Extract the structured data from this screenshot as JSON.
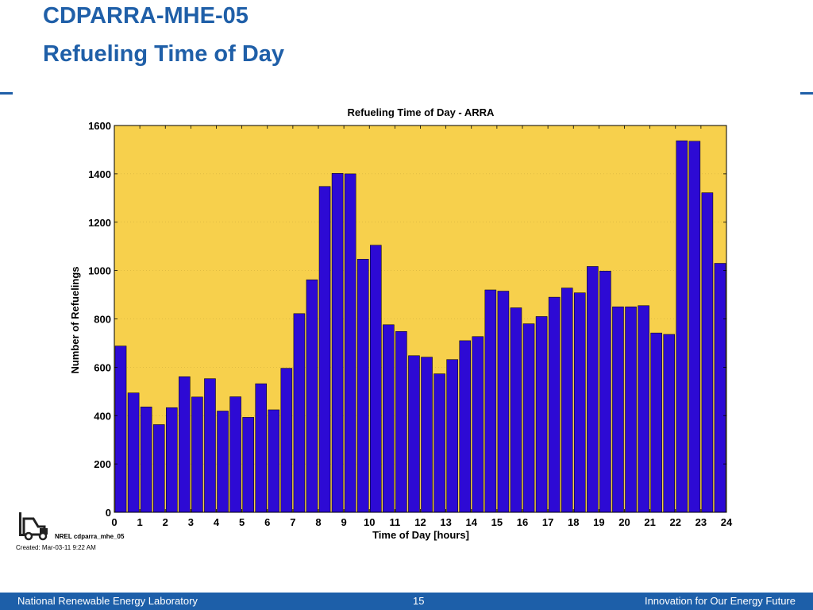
{
  "slide": {
    "title_line1": "CDPARRA-MHE-05",
    "title_line2": "Refueling Time of Day",
    "accent_color": "#1f5fa8"
  },
  "logo": {
    "icon": "forklift-icon",
    "caption": "NREL cdparra_mhe_05"
  },
  "created_note": "Created: Mar-03-11  9:22 AM",
  "footer": {
    "left": "National Renewable Energy Laboratory",
    "page_number": "15",
    "right": "Innovation for Our Energy Future",
    "background": "#1d5fa9"
  },
  "chart_data": {
    "type": "bar",
    "title": "Refueling Time of Day - ARRA",
    "xlabel": "Time of Day [hours]",
    "ylabel": "Number of Refuelings",
    "xlim": [
      0,
      24
    ],
    "ylim": [
      0,
      1600
    ],
    "bin_width_hours": 0.5,
    "x_ticks": [
      "0",
      "1",
      "2",
      "3",
      "4",
      "5",
      "6",
      "7",
      "8",
      "9",
      "10",
      "11",
      "12",
      "13",
      "14",
      "15",
      "16",
      "17",
      "18",
      "19",
      "20",
      "21",
      "22",
      "23",
      "24"
    ],
    "y_ticks": [
      "0",
      "200",
      "400",
      "600",
      "800",
      "1000",
      "1200",
      "1400",
      "1600"
    ],
    "grid": true,
    "plot_background": "#f7d04c",
    "bar_color": "#2d0ad4",
    "x": [
      0,
      0.5,
      1,
      1.5,
      2,
      2.5,
      3,
      3.5,
      4,
      4.5,
      5,
      5.5,
      6,
      6.5,
      7,
      7.5,
      8,
      8.5,
      9,
      9.5,
      10,
      10.5,
      11,
      11.5,
      12,
      12.5,
      13,
      13.5,
      14,
      14.5,
      15,
      15.5,
      16,
      16.5,
      17,
      17.5,
      18,
      18.5,
      19,
      19.5,
      20,
      20.5,
      21,
      21.5,
      22,
      22.5,
      23,
      23.5
    ],
    "values": [
      688,
      494,
      436,
      363,
      433,
      561,
      477,
      553,
      419,
      478,
      393,
      532,
      424,
      596,
      822,
      962,
      1348,
      1402,
      1400,
      1047,
      1105,
      776,
      748,
      648,
      642,
      573,
      632,
      710,
      727,
      920,
      915,
      846,
      780,
      810,
      890,
      928,
      908,
      1017,
      998,
      850,
      850,
      855,
      742,
      736,
      1537,
      1535,
      1322,
      1030
    ]
  }
}
